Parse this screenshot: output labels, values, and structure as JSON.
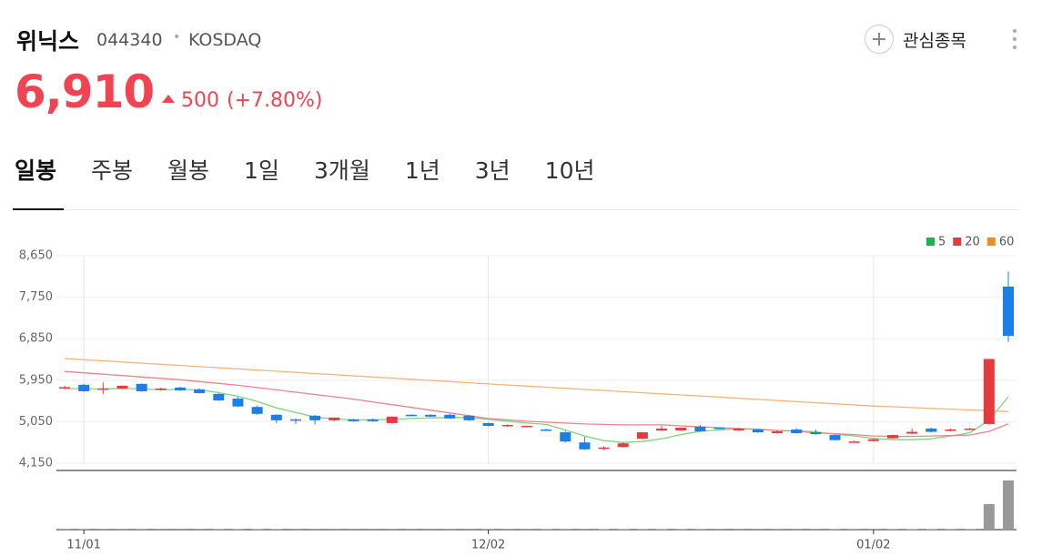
{
  "header": {
    "name": "위닉스",
    "code": "044340",
    "separator": "•",
    "market": "KOSDAQ",
    "watch_button": "관심종목"
  },
  "quote": {
    "price": "6,910",
    "change": "500",
    "change_pct": "(+7.80%)"
  },
  "tabs": [
    "일봉",
    "주봉",
    "월봉",
    "1일",
    "3개월",
    "1년",
    "3년",
    "10년"
  ],
  "chart_data": {
    "type": "candlestick",
    "categories": [
      null,
      "11/01",
      null,
      null,
      null,
      null,
      null,
      null,
      null,
      null,
      null,
      null,
      null,
      null,
      null,
      null,
      null,
      null,
      null,
      null,
      null,
      null,
      "12/02",
      null,
      null,
      null,
      null,
      null,
      null,
      null,
      null,
      null,
      null,
      null,
      null,
      null,
      null,
      null,
      null,
      null,
      null,
      null,
      "01/02",
      null,
      null,
      null,
      null,
      null,
      null,
      null
    ],
    "open": [
      5790,
      5850,
      5760,
      5770,
      5870,
      5750,
      5790,
      5750,
      5650,
      5550,
      5370,
      5200,
      5100,
      5180,
      5080,
      5100,
      5100,
      5020,
      5200,
      5200,
      5200,
      5180,
      5020,
      4960,
      4940,
      4880,
      4820,
      4600,
      4460,
      4500,
      4680,
      4860,
      4860,
      4940,
      4920,
      4860,
      4880,
      4800,
      4880,
      4820,
      4760,
      4600,
      4630,
      4690,
      4790,
      4900,
      4850,
      4880,
      5000,
      7980
    ],
    "high": [
      5830,
      5870,
      5900,
      5830,
      5880,
      5790,
      5810,
      5770,
      5670,
      5590,
      5400,
      5210,
      5120,
      5200,
      5140,
      5110,
      5120,
      5160,
      5210,
      5210,
      5220,
      5190,
      5030,
      4990,
      4970,
      4900,
      4850,
      4720,
      4520,
      4600,
      4830,
      4960,
      4920,
      4980,
      4930,
      4920,
      4890,
      4860,
      4910,
      4880,
      4770,
      4640,
      4680,
      4770,
      4900,
      4920,
      4900,
      4920,
      6410,
      8310
    ],
    "low": [
      5760,
      5700,
      5650,
      5760,
      5700,
      5720,
      5720,
      5660,
      5500,
      5370,
      5200,
      5020,
      5000,
      4990,
      5060,
      5050,
      5050,
      5010,
      5170,
      5150,
      5110,
      5070,
      4950,
      4940,
      4930,
      4850,
      4600,
      4440,
      4430,
      4490,
      4670,
      4850,
      4850,
      4830,
      4900,
      4850,
      4810,
      4790,
      4790,
      4770,
      4640,
      4590,
      4620,
      4680,
      4780,
      4820,
      4840,
      4870,
      4990,
      6780
    ],
    "close": [
      5800,
      5710,
      5770,
      5830,
      5710,
      5770,
      5730,
      5670,
      5510,
      5380,
      5220,
      5080,
      5090,
      5080,
      5140,
      5060,
      5060,
      5160,
      5180,
      5160,
      5120,
      5080,
      4960,
      4980,
      4960,
      4860,
      4620,
      4450,
      4490,
      4580,
      4820,
      4900,
      4920,
      4840,
      4910,
      4900,
      4820,
      4840,
      4800,
      4780,
      4650,
      4620,
      4670,
      4760,
      4830,
      4830,
      4880,
      4900,
      6410,
      6910
    ],
    "up_color": "#e8393f",
    "down_color": "#1a7fe8",
    "series": [
      {
        "name": "5",
        "color": "#22b14c",
        "line_color": "#7ad67a",
        "values": [
          5770,
          5760,
          5760,
          5770,
          5760,
          5740,
          5750,
          5740,
          5680,
          5600,
          5490,
          5350,
          5250,
          5150,
          5110,
          5090,
          5090,
          5100,
          5120,
          5130,
          5140,
          5140,
          5100,
          5060,
          5020,
          4990,
          4870,
          4740,
          4640,
          4600,
          4620,
          4680,
          4770,
          4840,
          4870,
          4900,
          4890,
          4860,
          4850,
          4830,
          4780,
          4740,
          4690,
          4660,
          4660,
          4680,
          4740,
          4810,
          5080,
          5590
        ]
      },
      {
        "name": "20",
        "color": "#e8393f",
        "line_color": "#f0828a",
        "values": [
          6140,
          6110,
          6080,
          6050,
          6020,
          5990,
          5960,
          5920,
          5880,
          5840,
          5790,
          5740,
          5690,
          5640,
          5590,
          5540,
          5480,
          5420,
          5360,
          5300,
          5240,
          5180,
          5120,
          5090,
          5060,
          5040,
          5020,
          5000,
          4990,
          4980,
          4980,
          4980,
          4960,
          4940,
          4920,
          4900,
          4880,
          4860,
          4840,
          4810,
          4790,
          4770,
          4740,
          4730,
          4730,
          4740,
          4750,
          4760,
          4840,
          5000
        ]
      },
      {
        "name": "60",
        "color": "#f08a24",
        "line_color": "#f5b47a",
        "values": [
          6420,
          6395,
          6370,
          6345,
          6320,
          6295,
          6270,
          6245,
          6220,
          6195,
          6170,
          6145,
          6120,
          6095,
          6070,
          6045,
          6020,
          5995,
          5970,
          5945,
          5920,
          5895,
          5870,
          5846,
          5822,
          5798,
          5774,
          5750,
          5726,
          5702,
          5678,
          5654,
          5630,
          5606,
          5582,
          5558,
          5534,
          5510,
          5486,
          5462,
          5438,
          5414,
          5390,
          5373,
          5356,
          5339,
          5322,
          5305,
          5288,
          5270
        ]
      }
    ],
    "volume": {
      "color": "#999999",
      "ylim": [
        0,
        30000000
      ],
      "values": [
        100000,
        120000,
        90000,
        80000,
        110000,
        70000,
        60000,
        90000,
        150000,
        160000,
        180000,
        170000,
        90000,
        80000,
        70000,
        60000,
        60000,
        90000,
        70000,
        60000,
        80000,
        70000,
        120000,
        90000,
        80000,
        150000,
        400000,
        450000,
        300000,
        350000,
        380000,
        200000,
        150000,
        140000,
        90000,
        80000,
        90000,
        100000,
        90000,
        110000,
        160000,
        120000,
        100000,
        130000,
        300000,
        200000,
        150000,
        180000,
        14000000,
        27000000
      ]
    },
    "ylim": [
      4150,
      8650
    ],
    "yticks": [
      {
        "value": 4150,
        "label": "4,150"
      },
      {
        "value": 5050,
        "label": "5,050"
      },
      {
        "value": 5950,
        "label": "5,950"
      },
      {
        "value": 6850,
        "label": "6,850"
      },
      {
        "value": 7750,
        "label": "7,750"
      },
      {
        "value": 8650,
        "label": "8,650"
      }
    ],
    "grid": true,
    "legend": "top-right"
  }
}
